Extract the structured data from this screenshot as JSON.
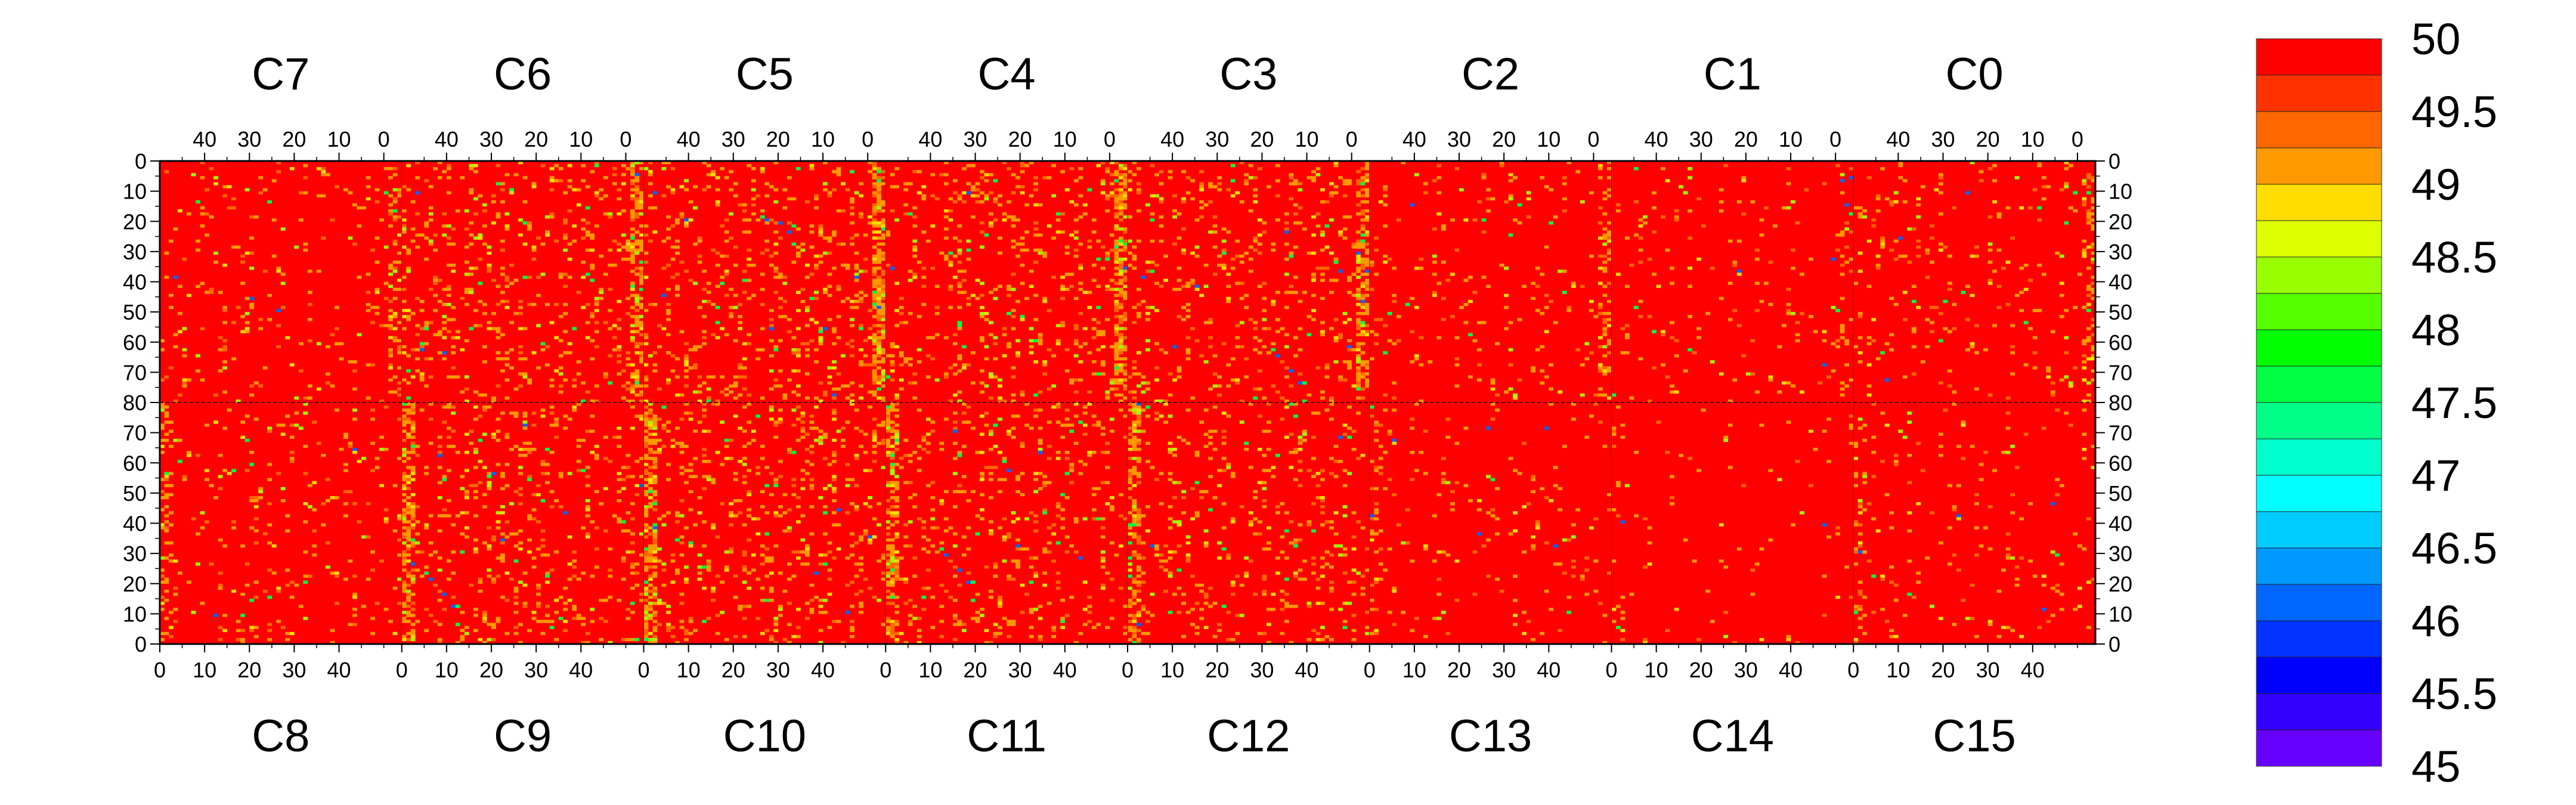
{
  "chart_data": {
    "type": "heatmap",
    "title": "",
    "xlabel": "",
    "ylabel": "",
    "top_chips": [
      "C7",
      "C6",
      "C5",
      "C4",
      "C3",
      "C2",
      "C1",
      "C0"
    ],
    "bottom_chips": [
      "C8",
      "C9",
      "C10",
      "C11",
      "C12",
      "C13",
      "C14",
      "C15"
    ],
    "top_x_tick_labels": [
      "40",
      "30",
      "20",
      "10",
      "0"
    ],
    "bottom_x_tick_labels": [
      "0",
      "10",
      "20",
      "30",
      "40"
    ],
    "y_tick_labels": [
      "0",
      "10",
      "20",
      "30",
      "40",
      "50",
      "60",
      "70",
      "80",
      "70",
      "60",
      "50",
      "40",
      "30",
      "20",
      "10",
      "0"
    ],
    "columns_per_chip": 54,
    "rows_per_half": 80,
    "zlim": [
      45,
      50
    ],
    "colorbar_tick_labels": [
      "50",
      "49.5",
      "49",
      "48.5",
      "48",
      "47.5",
      "47",
      "46.5",
      "46",
      "45.5",
      "45"
    ],
    "colorbar_colors": [
      "#ff0000",
      "#ff3300",
      "#ff6600",
      "#ff9900",
      "#ffdd00",
      "#ddff00",
      "#99ff00",
      "#55ff00",
      "#00ff00",
      "#00ff44",
      "#00ff88",
      "#00ffcc",
      "#00ffff",
      "#00ccff",
      "#0099ff",
      "#0066ff",
      "#0033ff",
      "#0000ff",
      "#3300ff",
      "#6600ff"
    ],
    "dominant_value": 50,
    "noise_fraction_by_chip": {
      "C7": 0.05,
      "C6": 0.11,
      "C5": 0.12,
      "C4": 0.12,
      "C3": 0.1,
      "C2": 0.05,
      "C1": 0.03,
      "C0": 0.05,
      "C8": 0.05,
      "C9": 0.11,
      "C10": 0.12,
      "C11": 0.1,
      "C12": 0.09,
      "C13": 0.03,
      "C14": 0.02,
      "C15": 0.03
    },
    "grid": false
  }
}
